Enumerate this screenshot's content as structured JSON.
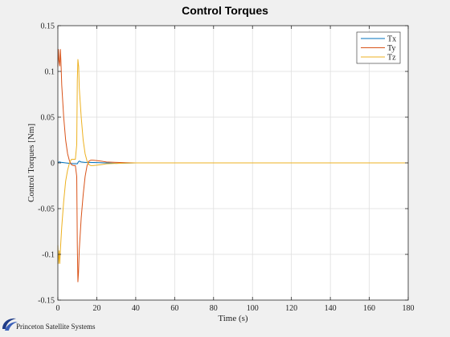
{
  "window": {
    "title": "Control Torques"
  },
  "watermark": {
    "text": "Princeton Satellite Systems"
  },
  "colors": {
    "background": "#f0f0f0",
    "plot_area": "#ffffff",
    "grid": "#dcdcdc",
    "axis": "#262626"
  },
  "chart_data": {
    "type": "line",
    "title": "Control Torques",
    "xlabel": "Time (s)",
    "ylabel": "Control Torques [Nm]",
    "xlim": [
      0,
      180
    ],
    "ylim": [
      -0.15,
      0.15
    ],
    "xticks": [
      0,
      20,
      40,
      60,
      80,
      100,
      120,
      140,
      160,
      180
    ],
    "xtick_labels": [
      "0",
      "20",
      "40",
      "60",
      "80",
      "100",
      "120",
      "140",
      "160",
      "180"
    ],
    "yticks": [
      -0.15,
      -0.1,
      -0.05,
      0,
      0.05,
      0.1,
      0.15
    ],
    "ytick_labels": [
      "-0.15",
      "-0.1",
      "-0.05",
      "0",
      "0.05",
      "0.1",
      "0.15"
    ],
    "grid": true,
    "legend_position": "top-right",
    "series": [
      {
        "name": "Tx",
        "color": "#0072bd",
        "x": [
          0,
          0.5,
          1,
          2,
          4,
          6,
          8,
          10,
          10.5,
          11,
          12,
          14,
          16,
          20,
          25,
          30,
          40,
          180
        ],
        "y": [
          0,
          0.001,
          0.001,
          0.0005,
          0,
          -0.0005,
          -0.001,
          -0.001,
          0.001,
          0.002,
          0.001,
          0.0005,
          0.0005,
          0.0003,
          0,
          -0.0005,
          0,
          0
        ]
      },
      {
        "name": "Ty",
        "color": "#d95319",
        "x": [
          0,
          0.3,
          0.6,
          1,
          1.3,
          1.6,
          2,
          3,
          4,
          5,
          6,
          7,
          8,
          9,
          9.7,
          10,
          10.3,
          10.6,
          11,
          12,
          13,
          14,
          15,
          16,
          17,
          18,
          20,
          22,
          25,
          30,
          35,
          40,
          50,
          180
        ],
        "y": [
          0.105,
          0.124,
          0.112,
          0.106,
          0.124,
          0.11,
          0.085,
          0.05,
          0.025,
          0.01,
          0.002,
          -0.002,
          -0.003,
          -0.003,
          -0.015,
          -0.09,
          -0.13,
          -0.12,
          -0.095,
          -0.06,
          -0.035,
          -0.015,
          -0.003,
          0.002,
          0.003,
          0.003,
          0.0025,
          0.002,
          0.001,
          0.0005,
          0.0002,
          0,
          0,
          0
        ]
      },
      {
        "name": "Tz",
        "color": "#edb120",
        "x": [
          0,
          0.3,
          0.7,
          1,
          1.3,
          2,
          3,
          4,
          5,
          6,
          7,
          8,
          9,
          9.7,
          10,
          10.3,
          10.7,
          11,
          12,
          13,
          14,
          15,
          16,
          17,
          18,
          20,
          22,
          25,
          30,
          35,
          40,
          50,
          180
        ],
        "y": [
          -0.09,
          -0.11,
          -0.096,
          -0.11,
          -0.095,
          -0.07,
          -0.042,
          -0.02,
          -0.008,
          0,
          0.004,
          0.004,
          0.004,
          0.02,
          0.09,
          0.113,
          0.105,
          0.082,
          0.05,
          0.025,
          0.01,
          0.002,
          -0.002,
          -0.003,
          -0.003,
          -0.0025,
          -0.002,
          -0.001,
          -0.0005,
          -0.0002,
          0,
          0,
          0
        ]
      }
    ]
  }
}
